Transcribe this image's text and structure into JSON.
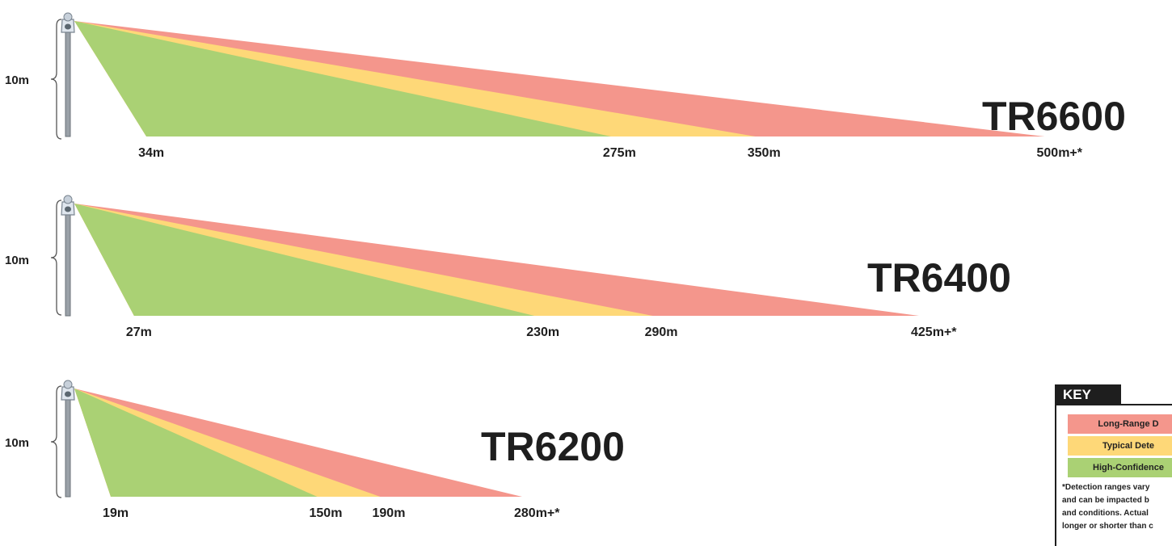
{
  "colors": {
    "long_range": "#f4968c",
    "typical": "#fed878",
    "high_confidence": "#aad174",
    "ink": "#1e1e1e",
    "pole": "#8a9199"
  },
  "diagrams": [
    {
      "model": "TR6600",
      "height_label": "10m",
      "ranges": {
        "high_confidence_start": 34,
        "high_confidence_end": 275,
        "typical_end": 350,
        "long_range_end": 500
      },
      "distance_labels": [
        "34m",
        "275m",
        "350m",
        "500m+*"
      ]
    },
    {
      "model": "TR6400",
      "height_label": "10m",
      "ranges": {
        "high_confidence_start": 27,
        "high_confidence_end": 230,
        "typical_end": 290,
        "long_range_end": 425
      },
      "distance_labels": [
        "27m",
        "230m",
        "290m",
        "425m+*"
      ]
    },
    {
      "model": "TR6200",
      "height_label": "10m",
      "ranges": {
        "high_confidence_start": 19,
        "high_confidence_end": 150,
        "typical_end": 190,
        "long_range_end": 280
      },
      "distance_labels": [
        "19m",
        "150m",
        "190m",
        "280m+*"
      ]
    }
  ],
  "key": {
    "title": "KEY",
    "items": [
      {
        "label": "Long-Range D",
        "color": "#f4968c"
      },
      {
        "label": "Typical Dete",
        "color": "#fed878"
      },
      {
        "label": "High-Confidence",
        "color": "#aad174"
      }
    ],
    "note_lines": [
      "*Detection ranges vary",
      "and can be impacted b",
      "and conditions.  Actual",
      "longer or shorter than c"
    ]
  }
}
